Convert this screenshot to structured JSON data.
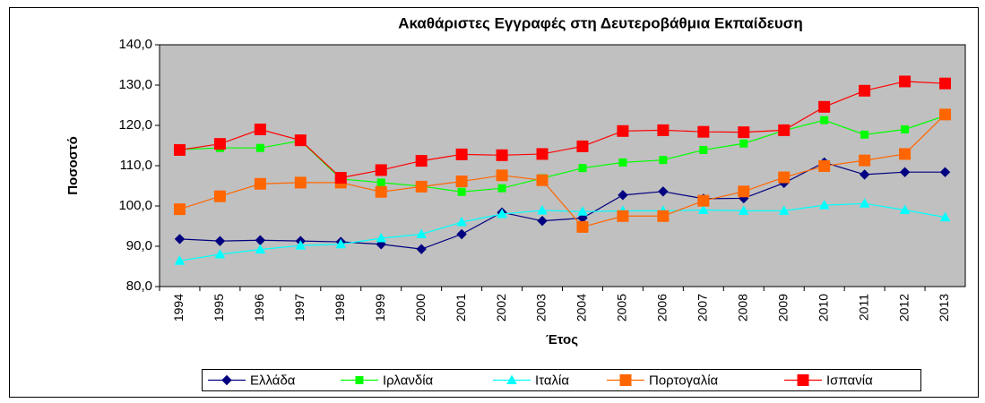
{
  "chart_data": {
    "type": "line",
    "title": "Ακαθάριστες Εγγραφές στη Δευτεροβάθμια Εκπαίδευση",
    "x_label": "Έτος",
    "y_label": "Ποσοστό",
    "categories": [
      "1994",
      "1995",
      "1996",
      "1997",
      "1998",
      "1999",
      "2000",
      "2001",
      "2002",
      "2003",
      "2004",
      "2005",
      "2006",
      "2007",
      "2008",
      "2009",
      "2010",
      "2011",
      "2012",
      "2013"
    ],
    "series": [
      {
        "name": "Ελλάδα",
        "color": "#000080",
        "marker": "diamond",
        "values": [
          91.8,
          91.3,
          91.5,
          91.3,
          91.1,
          90.5,
          89.3,
          93.0,
          98.4,
          96.3,
          97.0,
          102.7,
          103.6,
          101.8,
          101.9,
          105.7,
          110.8,
          107.8,
          108.4,
          108.4
        ]
      },
      {
        "name": "Ιρλανδία",
        "color": "#00ff00",
        "marker": "square-small",
        "values": [
          114.0,
          114.4,
          114.4,
          116.2,
          106.7,
          105.8,
          104.9,
          103.5,
          104.4,
          106.9,
          109.4,
          110.8,
          111.4,
          113.9,
          115.5,
          118.7,
          121.3,
          117.7,
          119.0,
          122.4
        ]
      },
      {
        "name": "Ιταλία",
        "color": "#00ffff",
        "marker": "triangle",
        "values": [
          86.4,
          88.0,
          89.2,
          90.2,
          90.5,
          92.0,
          93.0,
          96.0,
          98.0,
          98.9,
          98.6,
          98.8,
          98.8,
          99.0,
          98.8,
          98.8,
          100.2,
          100.6,
          99.0,
          97.2
        ]
      },
      {
        "name": "Πορτογαλία",
        "color": "#ff6600",
        "marker": "square",
        "values": [
          99.2,
          102.4,
          105.5,
          105.8,
          105.8,
          103.5,
          104.8,
          106.1,
          107.6,
          106.4,
          94.8,
          97.5,
          97.5,
          101.3,
          103.6,
          107.1,
          109.9,
          111.3,
          112.9,
          122.7
        ]
      },
      {
        "name": "Ισπανία",
        "color": "#ff0000",
        "marker": "square",
        "values": [
          113.9,
          115.4,
          119.0,
          116.3,
          107.0,
          108.9,
          111.2,
          112.8,
          112.6,
          112.9,
          114.8,
          118.6,
          118.8,
          118.4,
          118.3,
          118.8,
          124.6,
          128.6,
          130.9,
          130.4
        ]
      }
    ],
    "ylim": [
      80,
      140
    ],
    "yticks": [
      {
        "value": 80,
        "label": "80,0"
      },
      {
        "value": 90,
        "label": "90,0"
      },
      {
        "value": 100,
        "label": "100,0"
      },
      {
        "value": 110,
        "label": "110,0"
      },
      {
        "value": 120,
        "label": "120,0"
      },
      {
        "value": 130,
        "label": "130,0"
      },
      {
        "value": 140,
        "label": "140,0"
      }
    ],
    "grid": false,
    "plot_background": "#c0c0c0",
    "legend": "bottom"
  }
}
